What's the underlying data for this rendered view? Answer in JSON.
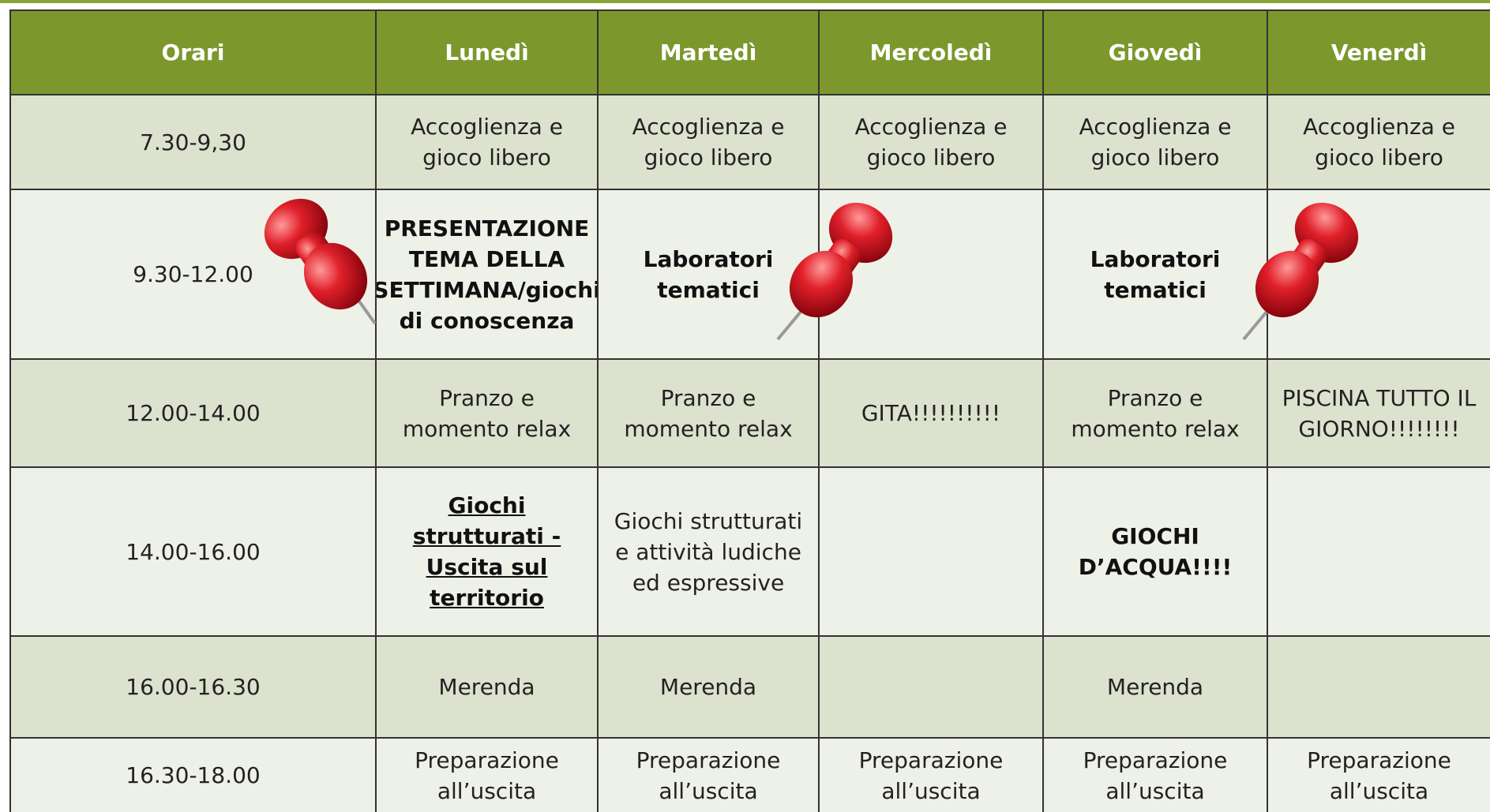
{
  "table": {
    "header": [
      "Orari",
      "Lunedì",
      "Martedì",
      "Mercoledì",
      "Giovedì",
      "Venerdì"
    ],
    "rows": [
      {
        "time": "7.30-9,30",
        "cells": [
          {
            "text": "Accoglienza e gioco libero"
          },
          {
            "text": "Accoglienza e gioco libero"
          },
          {
            "text": "Accoglienza e gioco libero"
          },
          {
            "text": "Accoglienza e gioco libero"
          },
          {
            "text": "Accoglienza e gioco libero"
          }
        ]
      },
      {
        "time": "9.30-12.00",
        "cells": [
          {
            "text": "PRESENTAZIONE TEMA DELLA SETTIMANA/giochi di conoscenza",
            "style": "bold"
          },
          {
            "text": "Laboratori tematici",
            "style": "bold"
          },
          null,
          {
            "text": "Laboratori tematici",
            "style": "bold"
          },
          null
        ]
      },
      {
        "time": "12.00-14.00",
        "cells": [
          {
            "text": "Pranzo e momento relax"
          },
          {
            "text": "Pranzo e momento relax"
          },
          {
            "text": "GITA!!!!!!!!!!"
          },
          {
            "text": "Pranzo e momento relax"
          },
          {
            "text": "PISCINA TUTTO IL GIORNO!!!!!!!!"
          }
        ]
      },
      {
        "time": "14.00-16.00",
        "cells": [
          {
            "text": "Giochi strutturati - Uscita sul territorio",
            "style": "bold-underline"
          },
          {
            "text": "Giochi strutturati e attività ludiche ed espressive"
          },
          null,
          {
            "text": "GIOCHI D’ACQUA!!!!",
            "style": "bold"
          },
          null
        ]
      },
      {
        "time": "16.00-16.30",
        "cells": [
          {
            "text": "Merenda"
          },
          {
            "text": "Merenda"
          },
          null,
          {
            "text": "Merenda"
          },
          null
        ]
      },
      {
        "time": "16.30-18.00",
        "cells": [
          {
            "text": "Preparazione all’uscita"
          },
          {
            "text": "Preparazione all’uscita"
          },
          {
            "text": "Preparazione all’uscita"
          },
          {
            "text": "Preparazione all’uscita"
          },
          {
            "text": "Preparazione all’uscita"
          }
        ]
      }
    ]
  }
}
